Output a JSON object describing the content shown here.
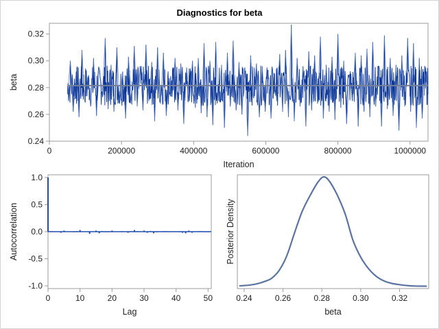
{
  "title": "Diagnostics for beta",
  "colors": {
    "trace": "#0a3597",
    "trace_light": "#5878bd",
    "mean_line": "#75819a",
    "acf": "#1d4db0",
    "density": "#5a73a0",
    "frame": "#9b9b9b"
  },
  "chart_data": [
    {
      "type": "line",
      "panel": "trace",
      "xlabel": "Iteration",
      "ylabel": "beta",
      "xlim": [
        0,
        1050000
      ],
      "ylim": [
        0.24,
        0.328
      ],
      "xticks": [
        "0",
        "200000",
        "400000",
        "600000",
        "800000",
        "1000000"
      ],
      "xtick_values": [
        0,
        200000,
        400000,
        600000,
        800000,
        1000000
      ],
      "yticks": [
        "0.24",
        "0.26",
        "0.28",
        "0.30",
        "0.32"
      ],
      "ytick_values": [
        0.24,
        0.26,
        0.28,
        0.3,
        0.32
      ],
      "x_range": [
        50000,
        1050000
      ],
      "mean": 0.2815,
      "values": [
        0.275,
        0.3,
        0.262,
        0.292,
        0.258,
        0.308,
        0.27,
        0.288,
        0.266,
        0.302,
        0.259,
        0.294,
        0.276,
        0.317,
        0.264,
        0.297,
        0.262,
        0.31,
        0.268,
        0.292,
        0.257,
        0.303,
        0.272,
        0.311,
        0.266,
        0.296,
        0.263,
        0.312,
        0.27,
        0.299,
        0.255,
        0.31,
        0.268,
        0.306,
        0.259,
        0.287,
        0.273,
        0.302,
        0.263,
        0.298,
        0.253,
        0.295,
        0.27,
        0.3,
        0.265,
        0.302,
        0.261,
        0.313,
        0.258,
        0.3,
        0.252,
        0.314,
        0.27,
        0.297,
        0.25,
        0.306,
        0.266,
        0.315,
        0.263,
        0.299,
        0.26,
        0.295,
        0.244,
        0.304,
        0.272,
        0.298,
        0.258,
        0.296,
        0.262,
        0.293,
        0.257,
        0.291,
        0.27,
        0.305,
        0.262,
        0.308,
        0.258,
        0.327,
        0.255,
        0.302,
        0.266,
        0.296,
        0.251,
        0.307,
        0.263,
        0.304,
        0.268,
        0.318,
        0.257,
        0.297,
        0.262,
        0.303,
        0.256,
        0.32,
        0.265,
        0.3,
        0.253,
        0.29,
        0.27,
        0.306,
        0.251,
        0.304,
        0.262,
        0.309,
        0.258,
        0.314,
        0.266,
        0.296,
        0.251,
        0.319,
        0.264,
        0.302,
        0.259,
        0.297,
        0.248,
        0.304,
        0.266,
        0.317,
        0.262,
        0.313,
        0.25,
        0.302,
        0.257,
        0.291,
        0.275
      ]
    },
    {
      "type": "bar",
      "panel": "autocorrelation",
      "xlabel": "Lag",
      "ylabel": "Autocorrelation",
      "xlim": [
        0,
        51
      ],
      "ylim": [
        -1.05,
        1.05
      ],
      "xticks": [
        "0",
        "10",
        "20",
        "30",
        "40",
        "50"
      ],
      "xtick_values": [
        0,
        10,
        20,
        30,
        40,
        50
      ],
      "yticks": [
        "-1.0",
        "-0.5",
        "0.0",
        "0.5",
        "1.0"
      ],
      "ytick_values": [
        -1.0,
        -0.5,
        0.0,
        0.5,
        1.0
      ],
      "lags": [
        0,
        1,
        2,
        3,
        4,
        5,
        6,
        7,
        8,
        9,
        10,
        11,
        12,
        13,
        14,
        15,
        16,
        17,
        18,
        19,
        20,
        21,
        22,
        23,
        24,
        25,
        26,
        27,
        28,
        29,
        30,
        31,
        32,
        33,
        34,
        35,
        36,
        37,
        38,
        39,
        40,
        41,
        42,
        43,
        44,
        45,
        46,
        47,
        48,
        49,
        50
      ],
      "values": [
        1.0,
        0.01,
        0.0,
        0.0,
        -0.02,
        0.02,
        0.0,
        0.0,
        -0.01,
        0.01,
        0.03,
        0.0,
        -0.005,
        -0.04,
        0.005,
        0.02,
        -0.03,
        0.01,
        -0.01,
        -0.01,
        0.02,
        0.005,
        0.0,
        -0.01,
        0.005,
        -0.02,
        0.01,
        0.03,
        0.01,
        0.0,
        0.02,
        -0.02,
        0.01,
        -0.03,
        -0.01,
        0.0,
        0.01,
        0.01,
        -0.01,
        0.0,
        0.0,
        -0.01,
        -0.02,
        -0.03,
        0.02,
        -0.02,
        0.0,
        0.01,
        0.01,
        -0.01,
        -0.01
      ]
    },
    {
      "type": "line",
      "panel": "density",
      "xlabel": "beta",
      "ylabel": "Posterior Density",
      "xlim": [
        0.2365,
        0.335
      ],
      "xticks": [
        "0.24",
        "0.26",
        "0.28",
        "0.30",
        "0.32"
      ],
      "xtick_values": [
        0.24,
        0.26,
        0.28,
        0.3,
        0.32
      ],
      "x": [
        0.2375,
        0.242,
        0.246,
        0.25,
        0.254,
        0.258,
        0.262,
        0.266,
        0.27,
        0.274,
        0.278,
        0.281,
        0.284,
        0.288,
        0.292,
        0.296,
        0.3,
        0.304,
        0.308,
        0.312,
        0.316,
        0.32,
        0.324,
        0.328,
        0.334
      ],
      "y": [
        0.2,
        0.4,
        0.8,
        1.5,
        2.6,
        5.2,
        10.0,
        17.5,
        24.5,
        29.5,
        33.8,
        35.5,
        34.0,
        29.5,
        23.5,
        15.0,
        9.5,
        5.8,
        3.3,
        1.8,
        1.0,
        0.6,
        0.3,
        0.15,
        0.1
      ]
    }
  ]
}
